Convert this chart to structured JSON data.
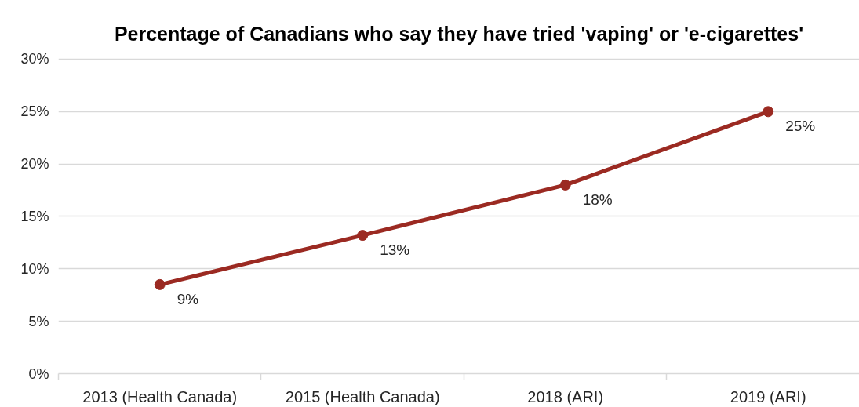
{
  "chart_data": {
    "type": "line",
    "title": "Percentage of Canadians who say they have tried 'vaping' or 'e-cigarettes'",
    "categories": [
      "2013 (Health Canada)",
      "2015 (Health Canada)",
      "2018 (ARI)",
      "2019 (ARI)"
    ],
    "series": [
      {
        "color": "#9b2a22",
        "values": [
          8.5,
          13.2,
          18.0,
          25.0
        ],
        "value_labels": [
          "9%",
          "13%",
          "18%",
          "25%"
        ]
      }
    ],
    "ylim": [
      0,
      30
    ],
    "yticks": [
      {
        "value": 0,
        "label": "0%"
      },
      {
        "value": 5,
        "label": "5%"
      },
      {
        "value": 10,
        "label": "10%"
      },
      {
        "value": 15,
        "label": "15%"
      },
      {
        "value": 20,
        "label": "20%"
      },
      {
        "value": 25,
        "label": "25%"
      },
      {
        "value": 30,
        "label": "30%"
      }
    ],
    "grid": "y",
    "marker": "circle",
    "line_style": "solid"
  }
}
